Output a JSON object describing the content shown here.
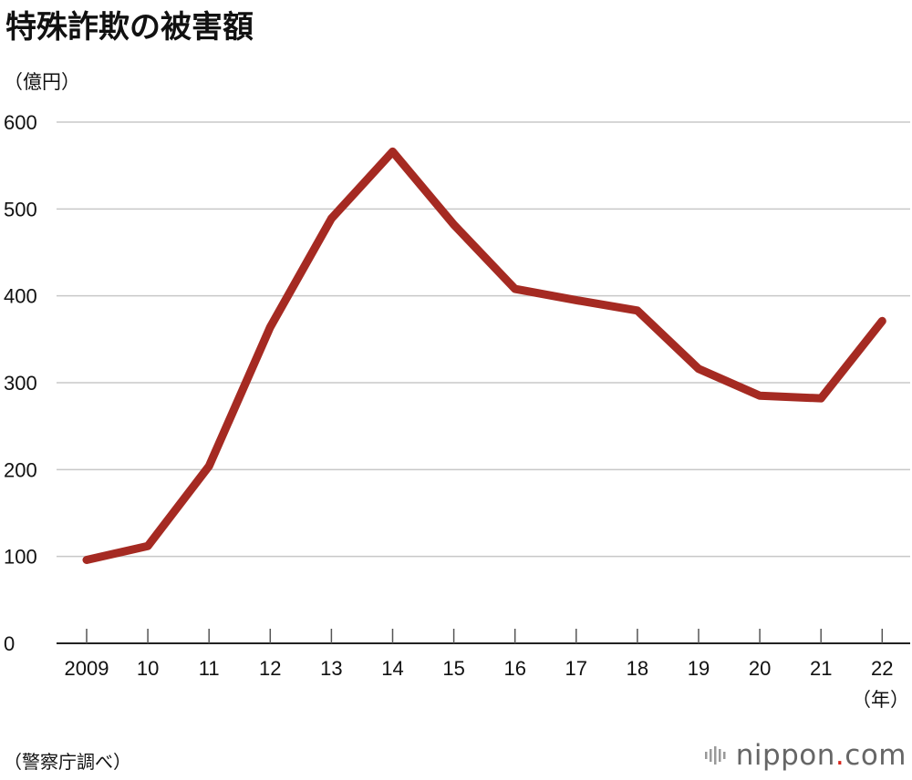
{
  "title": "特殊詐欺の被害額",
  "ylabel": "（億円）",
  "source": "（警察庁調べ）",
  "brand": {
    "name": "nippon",
    "dot": ".",
    "tld": "com"
  },
  "colors": {
    "line": "#a52a22",
    "grid": "#c8c8c8",
    "axis": "#222222",
    "brand_dot": "#d8261c"
  },
  "chart_data": {
    "type": "line",
    "title": "特殊詐欺の被害額",
    "ylabel": "（億円）",
    "xlabel": "（年）",
    "categories": [
      "2009",
      "10",
      "11",
      "12",
      "13",
      "14",
      "15",
      "16",
      "17",
      "18",
      "19",
      "20",
      "21",
      "22"
    ],
    "series": [
      {
        "values": [
          96,
          112,
          204,
          364,
          489,
          566,
          482,
          408,
          395,
          383,
          316,
          285,
          282,
          371
        ]
      }
    ],
    "yticks": [
      "0",
      "100",
      "200",
      "300",
      "400",
      "500",
      "600"
    ],
    "ylim": [
      0,
      600
    ],
    "grid": true,
    "legend": "none"
  }
}
